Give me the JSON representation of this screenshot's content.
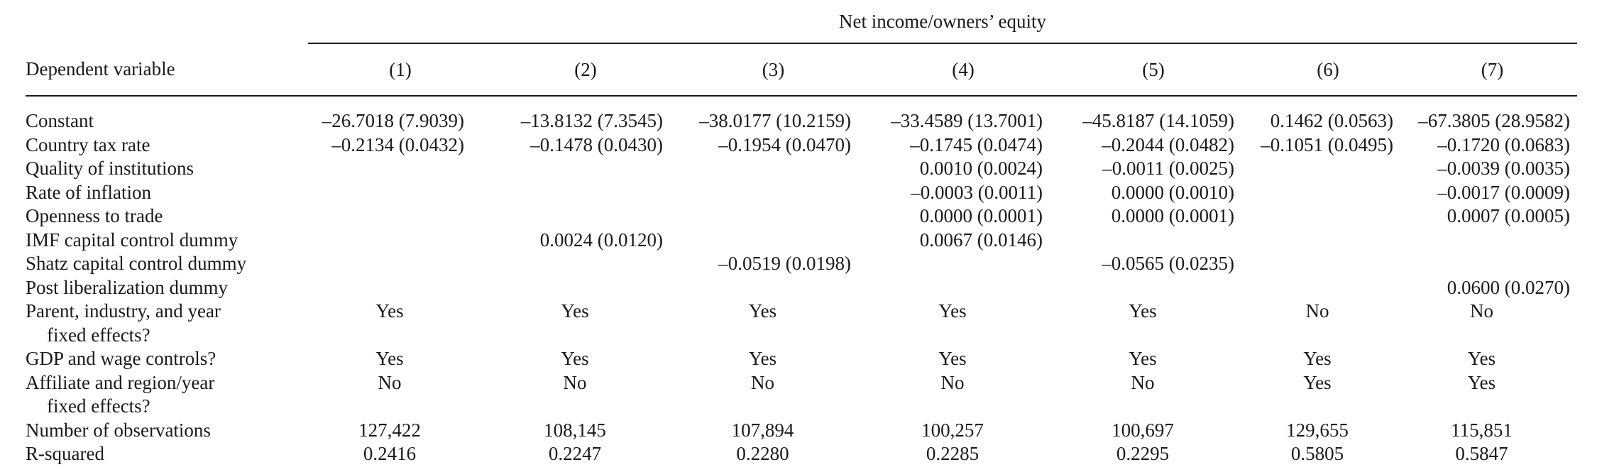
{
  "header": {
    "span_label": "Net income/owners’ equity",
    "dep_var_label": "Dependent variable",
    "columns": [
      "(1)",
      "(2)",
      "(3)",
      "(4)",
      "(5)",
      "(6)",
      "(7)"
    ]
  },
  "rows": [
    {
      "label": "Constant",
      "cells": [
        "–26.7018 (7.9039)",
        "–13.8132 (7.3545)",
        "–38.0177 (10.2159)",
        "–33.4589 (13.7001)",
        "–45.8187 (14.1059)",
        "0.1462 (0.0563)",
        "–67.3805 (28.9582)"
      ]
    },
    {
      "label": "Country tax rate",
      "cells": [
        "–0.2134 (0.0432)",
        "–0.1478 (0.0430)",
        "–0.1954 (0.0470)",
        "–0.1745 (0.0474)",
        "–0.2044 (0.0482)",
        "–0.1051 (0.0495)",
        "–0.1720 (0.0683)"
      ]
    },
    {
      "label": "Quality of institutions",
      "cells": [
        "",
        "",
        "",
        "0.0010 (0.0024)",
        "–0.0011 (0.0025)",
        "",
        "–0.0039 (0.0035)"
      ]
    },
    {
      "label": "Rate of inflation",
      "cells": [
        "",
        "",
        "",
        "–0.0003 (0.0011)",
        "0.0000 (0.0010)",
        "",
        "–0.0017 (0.0009)"
      ]
    },
    {
      "label": "Openness to trade",
      "cells": [
        "",
        "",
        "",
        "0.0000 (0.0001)",
        "0.0000 (0.0001)",
        "",
        "0.0007 (0.0005)"
      ]
    },
    {
      "label": "IMF capital control dummy",
      "cells": [
        "",
        "0.0024 (0.0120)",
        "",
        "0.0067 (0.0146)",
        "",
        "",
        ""
      ]
    },
    {
      "label": "Shatz capital control dummy",
      "cells": [
        "",
        "",
        "–0.0519 (0.0198)",
        "",
        "–0.0565 (0.0235)",
        "",
        ""
      ]
    },
    {
      "label": "Post liberalization dummy",
      "cells": [
        "",
        "",
        "",
        "",
        "",
        "",
        "0.0600 (0.0270)"
      ]
    },
    {
      "label": "Parent, industry, and year",
      "label2": "fixed effects?",
      "cells": [
        "Yes",
        "Yes",
        "Yes",
        "Yes",
        "Yes",
        "No",
        "No"
      ]
    },
    {
      "label": "GDP and wage controls?",
      "cells": [
        "Yes",
        "Yes",
        "Yes",
        "Yes",
        "Yes",
        "Yes",
        "Yes"
      ]
    },
    {
      "label": "Affiliate and region/year",
      "label2": "fixed effects?",
      "cells": [
        "No",
        "No",
        "No",
        "No",
        "No",
        "Yes",
        "Yes"
      ]
    },
    {
      "label": "Number of observations",
      "cells": [
        "127,422",
        "108,145",
        "107,894",
        "100,257",
        "100,697",
        "129,655",
        "115,851"
      ]
    },
    {
      "label": "R-squared",
      "cells": [
        "0.2416",
        "0.2247",
        "0.2280",
        "0.2285",
        "0.2295",
        "0.5805",
        "0.5847"
      ]
    }
  ]
}
